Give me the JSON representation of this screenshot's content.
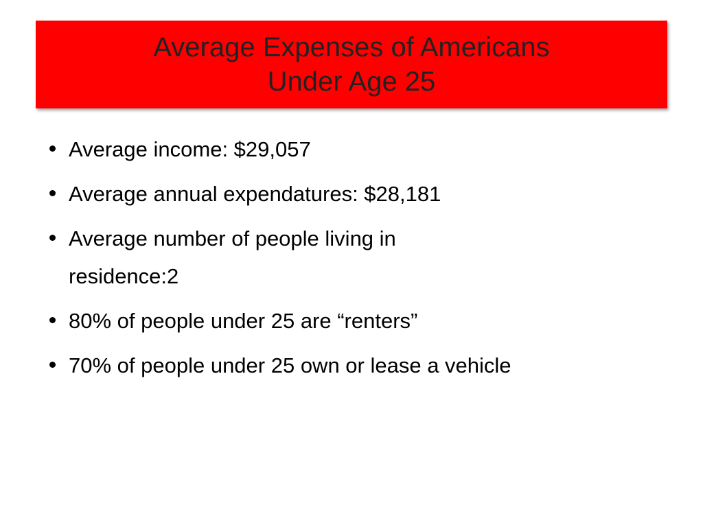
{
  "title": {
    "lines": [
      "Average Expenses of Americans",
      "Under Age 25"
    ]
  },
  "bullets": [
    [
      "Average income:  $29,057"
    ],
    [
      "Average annual expendatures:  $28,181"
    ],
    [
      "Average number of people living in",
      "residence:2"
    ],
    [
      "80% of people under 25 are “renters”"
    ],
    [
      "70% of people under 25 own or lease a vehicle"
    ]
  ]
}
